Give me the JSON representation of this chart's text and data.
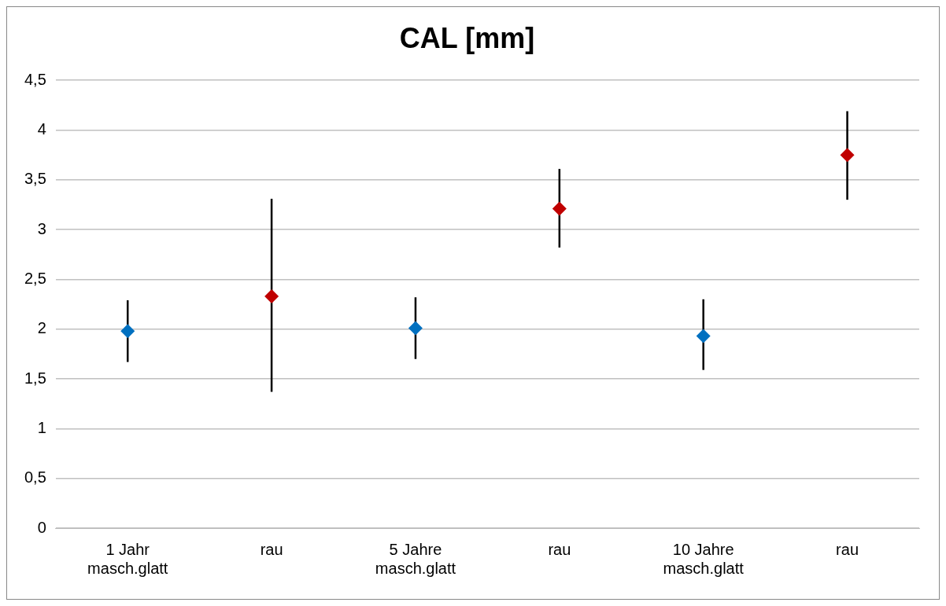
{
  "chart_data": {
    "type": "scatter",
    "title": "CAL [mm]",
    "categories": [
      "1 Jahr\nmasch.glatt",
      "rau",
      "5 Jahre\nmasch.glatt",
      "rau",
      "10 Jahre\nmasch.glatt",
      "rau"
    ],
    "series": [
      {
        "color": "#0070c0",
        "values": [
          1.98,
          null,
          2.01,
          null,
          1.93,
          null
        ],
        "errors": [
          [
            1.67,
            2.29
          ],
          null,
          [
            1.7,
            2.32
          ],
          null,
          [
            1.59,
            2.3
          ],
          null
        ]
      },
      {
        "color": "#c00000",
        "values": [
          null,
          2.33,
          null,
          3.21,
          null,
          3.75
        ],
        "errors": [
          null,
          [
            1.37,
            3.31
          ],
          null,
          [
            2.82,
            3.61
          ],
          null,
          [
            3.3,
            4.19
          ]
        ]
      }
    ],
    "ylim": [
      0,
      4.5
    ],
    "yticks": [
      0,
      {
        "value": 0.5,
        "label": "0,5"
      },
      1,
      {
        "value": 1.5,
        "label": "1,5"
      },
      2,
      {
        "value": 2.5,
        "label": "2,5"
      },
      3,
      {
        "value": 3.5,
        "label": "3,5"
      },
      4,
      {
        "value": 4.5,
        "label": "4,5"
      }
    ],
    "grid": "y",
    "marker": "diamond"
  }
}
